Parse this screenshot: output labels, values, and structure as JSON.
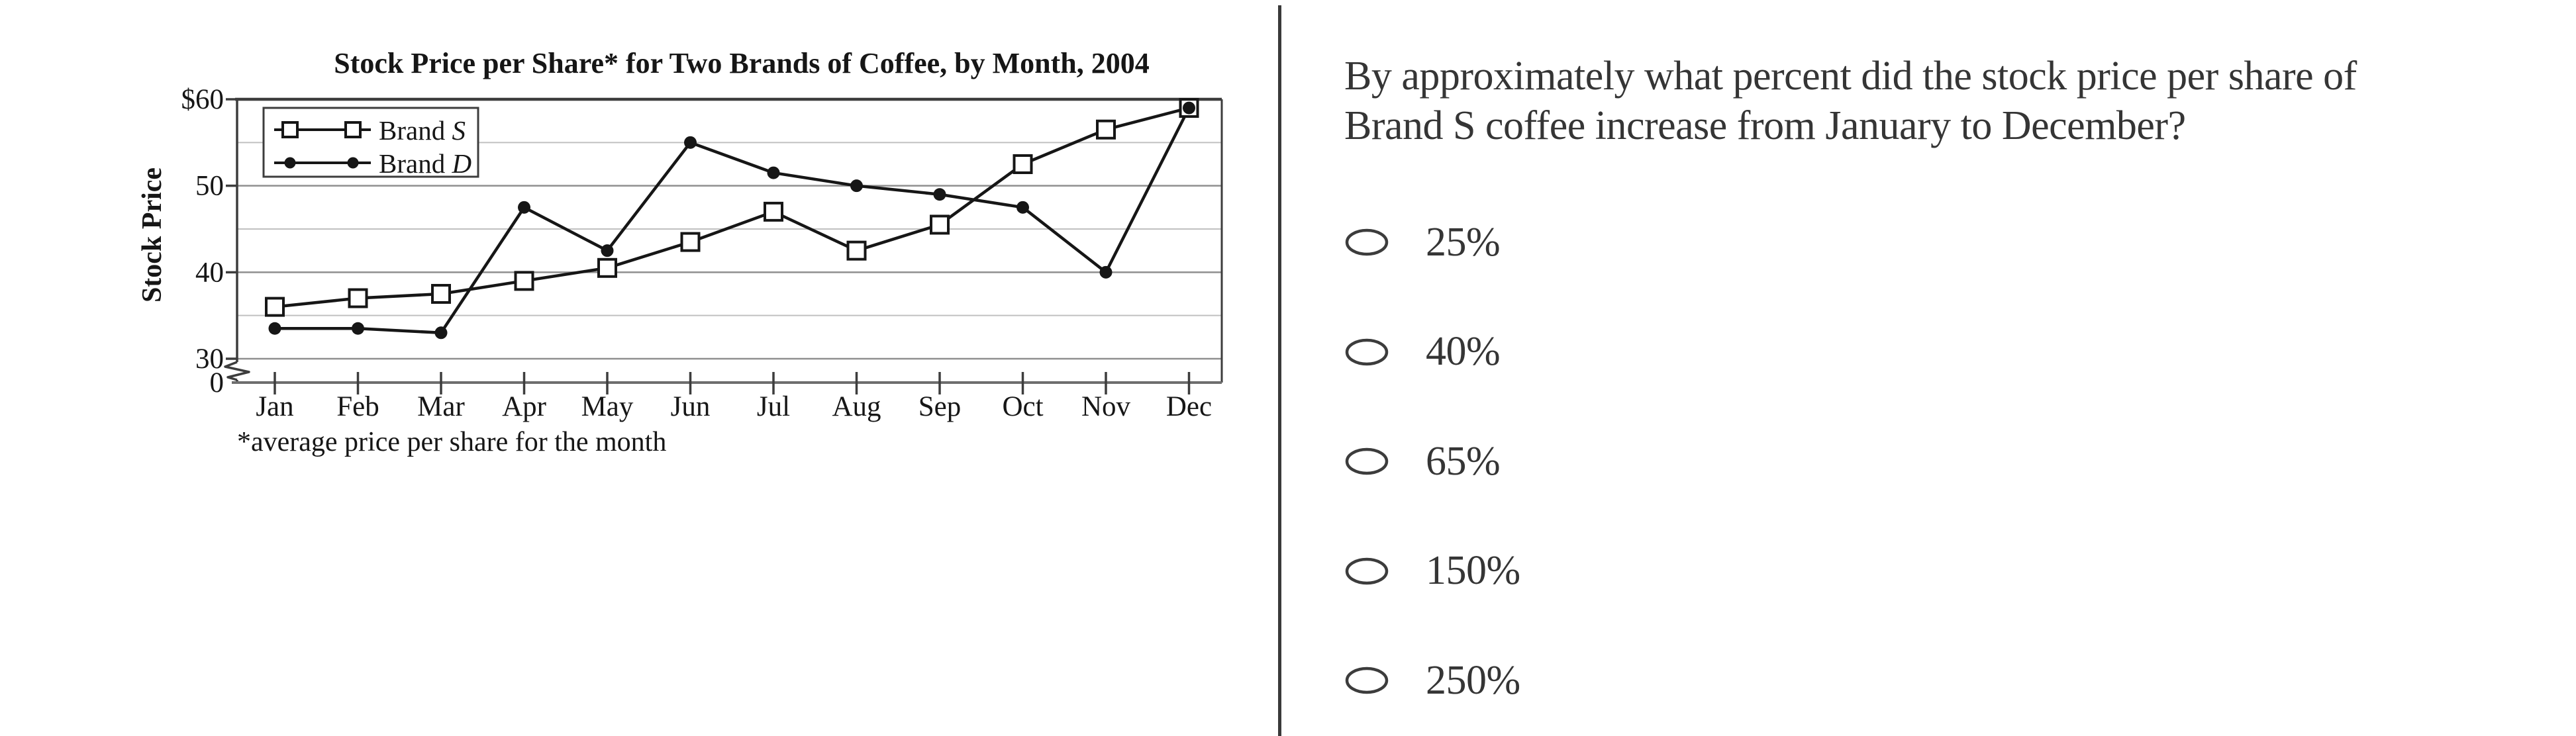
{
  "chart_data": {
    "type": "line",
    "title": "Stock Price per Share* for Two Brands of Coffee, by Month, 2004",
    "ylabel": "Stock Price",
    "footnote": "*average price per share for the month",
    "categories": [
      "Jan",
      "Feb",
      "Mar",
      "Apr",
      "May",
      "Jun",
      "Jul",
      "Aug",
      "Sep",
      "Oct",
      "Nov",
      "Dec"
    ],
    "series": [
      {
        "name": "Brand S",
        "marker": "open-square",
        "values": [
          36,
          37,
          37.5,
          39,
          40.5,
          43.5,
          47,
          42.5,
          45.5,
          52.5,
          56.5,
          59
        ]
      },
      {
        "name": "Brand D",
        "marker": "filled-circle",
        "values": [
          33.5,
          33.5,
          33,
          47.5,
          42.5,
          55,
          51.5,
          50,
          49,
          47.5,
          40,
          59
        ]
      }
    ],
    "y_axis": {
      "tick_labels": [
        {
          "label": "$60",
          "value": 60
        },
        {
          "label": "50",
          "value": 50
        },
        {
          "label": "40",
          "value": 40
        },
        {
          "label": "30",
          "value": 30
        },
        {
          "label": "0",
          "value": 0
        }
      ],
      "gridline_step": 5,
      "visible_range": [
        30,
        60
      ],
      "axis_break_between": [
        0,
        30
      ]
    },
    "legend": {
      "position": "top-left",
      "entries": [
        "Brand S",
        "Brand D"
      ]
    },
    "grid": true
  },
  "question": {
    "lines": [
      "By approximately what percent did the stock price per share of",
      "Brand S coffee increase from January to December?"
    ]
  },
  "options": [
    {
      "label": "25%",
      "selected": false
    },
    {
      "label": "40%",
      "selected": false
    },
    {
      "label": "65%",
      "selected": false
    },
    {
      "label": "150%",
      "selected": false
    },
    {
      "label": "250%",
      "selected": false
    }
  ],
  "colors": {
    "ink": "#161616",
    "axis": "#3d3d3d",
    "x_axis": "#6e6e6e",
    "grid_major": "#8f8f8f",
    "grid_minor": "#c0c0c0",
    "divider": "#3a3a3a",
    "text": "#353535"
  }
}
